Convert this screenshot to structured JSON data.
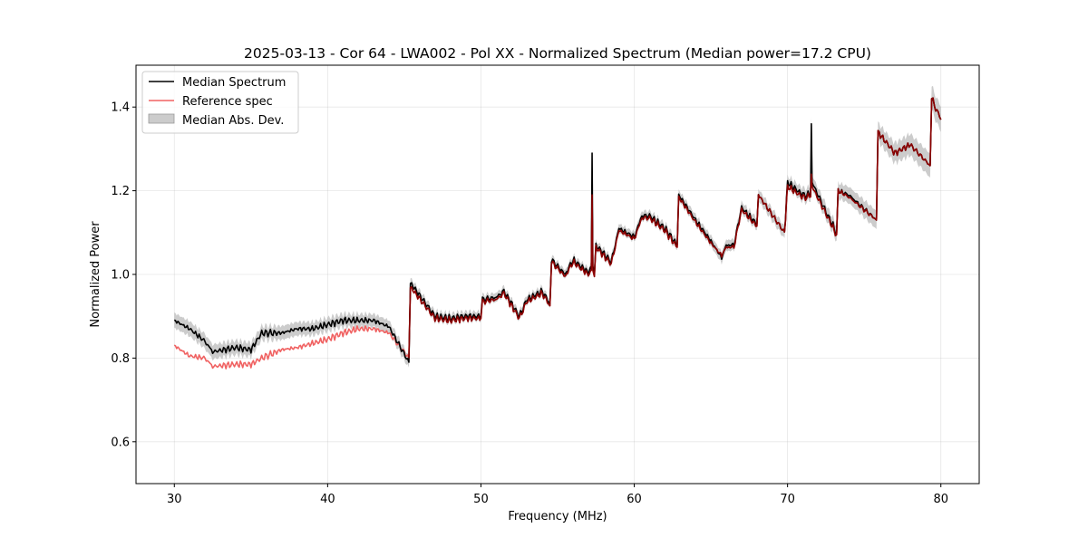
{
  "chart_data": {
    "type": "line",
    "title": "2025-03-13 - Cor 64 - LWA002 - Pol XX - Normalized Spectrum (Median power=17.2 CPU)",
    "xlabel": "Frequency (MHz)",
    "ylabel": "Normalized Power",
    "xlim": [
      27.5,
      82.5
    ],
    "ylim": [
      0.5,
      1.5
    ],
    "xticks": [
      30,
      40,
      50,
      60,
      70,
      80
    ],
    "yticks": [
      0.6,
      0.8,
      1.0,
      1.2,
      1.4
    ],
    "xtick_labels": [
      "30",
      "40",
      "50",
      "60",
      "70",
      "80"
    ],
    "ytick_labels": [
      "0.6",
      "0.8",
      "1.0",
      "1.2",
      "1.4"
    ],
    "grid": true,
    "legend_position": "top-left",
    "series": [
      {
        "name": "Median Spectrum",
        "color": "#000000",
        "points": [
          [
            30,
            0.89
          ],
          [
            31,
            0.87
          ],
          [
            32,
            0.84
          ],
          [
            32.5,
            0.815
          ],
          [
            34,
            0.825
          ],
          [
            35,
            0.82
          ],
          [
            35.7,
            0.86
          ],
          [
            37,
            0.86
          ],
          [
            38,
            0.87
          ],
          [
            39,
            0.87
          ],
          [
            40,
            0.88
          ],
          [
            41,
            0.89
          ],
          [
            42,
            0.89
          ],
          [
            43,
            0.89
          ],
          [
            44,
            0.875
          ],
          [
            45.3,
            0.79
          ],
          [
            45.4,
            0.98
          ],
          [
            47,
            0.9
          ],
          [
            48,
            0.895
          ],
          [
            49,
            0.9
          ],
          [
            50,
            0.9
          ],
          [
            50.1,
            0.94
          ],
          [
            51,
            0.945
          ],
          [
            51.5,
            0.96
          ],
          [
            52.5,
            0.9
          ],
          [
            53,
            0.94
          ],
          [
            54,
            0.96
          ],
          [
            54.5,
            0.93
          ],
          [
            54.6,
            1.035
          ],
          [
            55.5,
            1.0
          ],
          [
            56,
            1.035
          ],
          [
            57,
            1.005
          ],
          [
            57.2,
            1.02
          ],
          [
            57.25,
            1.29
          ],
          [
            57.3,
            1.02
          ],
          [
            57.4,
            1.0
          ],
          [
            57.5,
            1.07
          ],
          [
            58.5,
            1.03
          ],
          [
            59,
            1.11
          ],
          [
            60,
            1.09
          ],
          [
            60.5,
            1.14
          ],
          [
            61,
            1.14
          ],
          [
            62,
            1.11
          ],
          [
            62.8,
            1.07
          ],
          [
            62.9,
            1.19
          ],
          [
            64,
            1.13
          ],
          [
            65,
            1.08
          ],
          [
            65.7,
            1.04
          ],
          [
            66,
            1.07
          ],
          [
            66.5,
            1.07
          ],
          [
            67,
            1.16
          ],
          [
            68,
            1.12
          ],
          [
            68.1,
            1.19
          ],
          [
            69.8,
            1.1
          ],
          [
            70,
            1.22
          ],
          [
            71,
            1.19
          ],
          [
            71.5,
            1.19
          ],
          [
            71.55,
            1.36
          ],
          [
            71.6,
            1.22
          ],
          [
            72.5,
            1.15
          ],
          [
            73.2,
            1.1
          ],
          [
            73.3,
            1.2
          ],
          [
            74,
            1.19
          ],
          [
            75.8,
            1.13
          ],
          [
            75.9,
            1.34
          ],
          [
            77,
            1.29
          ],
          [
            78,
            1.31
          ],
          [
            79.3,
            1.26
          ],
          [
            79.4,
            1.42
          ],
          [
            80,
            1.37
          ]
        ]
      },
      {
        "name": "Reference spec",
        "color": "#f06262",
        "points": [
          [
            30,
            0.83
          ],
          [
            31,
            0.805
          ],
          [
            32,
            0.8
          ],
          [
            32.5,
            0.78
          ],
          [
            34,
            0.785
          ],
          [
            35,
            0.785
          ],
          [
            35.7,
            0.8
          ],
          [
            37,
            0.82
          ],
          [
            38,
            0.825
          ],
          [
            39,
            0.835
          ],
          [
            40,
            0.845
          ],
          [
            41,
            0.86
          ],
          [
            42,
            0.87
          ],
          [
            43,
            0.87
          ],
          [
            44,
            0.86
          ],
          [
            45.3,
            0.8
          ],
          [
            45.4,
            0.97
          ],
          [
            47,
            0.895
          ],
          [
            48,
            0.89
          ],
          [
            49,
            0.895
          ],
          [
            50,
            0.895
          ],
          [
            50.1,
            0.935
          ],
          [
            51,
            0.94
          ],
          [
            51.5,
            0.955
          ],
          [
            52.5,
            0.895
          ],
          [
            53,
            0.935
          ],
          [
            54,
            0.955
          ],
          [
            54.5,
            0.925
          ],
          [
            54.6,
            1.03
          ],
          [
            55.5,
            0.995
          ],
          [
            56,
            1.03
          ],
          [
            57,
            1.0
          ],
          [
            57.2,
            1.01
          ],
          [
            57.25,
            1.19
          ],
          [
            57.3,
            1.01
          ],
          [
            57.4,
            0.995
          ],
          [
            57.5,
            1.065
          ],
          [
            58.5,
            1.025
          ],
          [
            59,
            1.105
          ],
          [
            60,
            1.085
          ],
          [
            60.5,
            1.135
          ],
          [
            61,
            1.135
          ],
          [
            62,
            1.105
          ],
          [
            62.8,
            1.065
          ],
          [
            62.9,
            1.185
          ],
          [
            64,
            1.125
          ],
          [
            65,
            1.075
          ],
          [
            65.7,
            1.045
          ],
          [
            66,
            1.065
          ],
          [
            66.5,
            1.065
          ],
          [
            67,
            1.155
          ],
          [
            68,
            1.115
          ],
          [
            68.1,
            1.19
          ],
          [
            69.8,
            1.1
          ],
          [
            70,
            1.21
          ],
          [
            71,
            1.185
          ],
          [
            71.5,
            1.185
          ],
          [
            71.55,
            1.24
          ],
          [
            71.6,
            1.21
          ],
          [
            72.5,
            1.145
          ],
          [
            73.2,
            1.095
          ],
          [
            73.3,
            1.2
          ],
          [
            74,
            1.185
          ],
          [
            75.8,
            1.13
          ],
          [
            75.9,
            1.34
          ],
          [
            77,
            1.29
          ],
          [
            78,
            1.31
          ],
          [
            79.3,
            1.26
          ],
          [
            79.4,
            1.42
          ],
          [
            80,
            1.37
          ]
        ]
      },
      {
        "name": "Median Abs. Dev.",
        "color": "#aaaaaa",
        "half_width_points": [
          [
            30,
            0.018
          ],
          [
            45,
            0.015
          ],
          [
            45.4,
            0.012
          ],
          [
            55,
            0.01
          ],
          [
            63,
            0.012
          ],
          [
            70,
            0.015
          ],
          [
            76,
            0.022
          ],
          [
            80,
            0.03
          ]
        ]
      }
    ]
  }
}
